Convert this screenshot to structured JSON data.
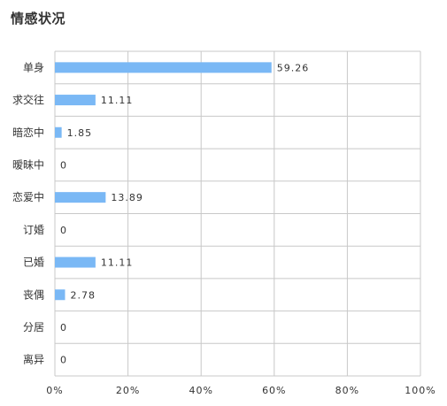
{
  "title": "情感状况",
  "chart_data": {
    "type": "bar",
    "orientation": "horizontal",
    "title": "情感状况",
    "categories": [
      "单身",
      "求交往",
      "暗恋中",
      "暧昧中",
      "恋爱中",
      "订婚",
      "已婚",
      "丧偶",
      "分居",
      "离异"
    ],
    "values": [
      59.26,
      11.11,
      1.85,
      0,
      13.89,
      0,
      11.11,
      2.78,
      0,
      0
    ],
    "value_labels": [
      "59.26",
      "11.11",
      "1.85",
      "0",
      "13.89",
      "0",
      "11.11",
      "2.78",
      "0",
      "0"
    ],
    "xlim": [
      0,
      100
    ],
    "x_ticks": [
      "0%",
      "20%",
      "40%",
      "60%",
      "80%",
      "100%"
    ],
    "grid": true,
    "bar_color": "#7ab8f5",
    "grid_color": "#c8c8c8",
    "text_color": "#333333"
  }
}
